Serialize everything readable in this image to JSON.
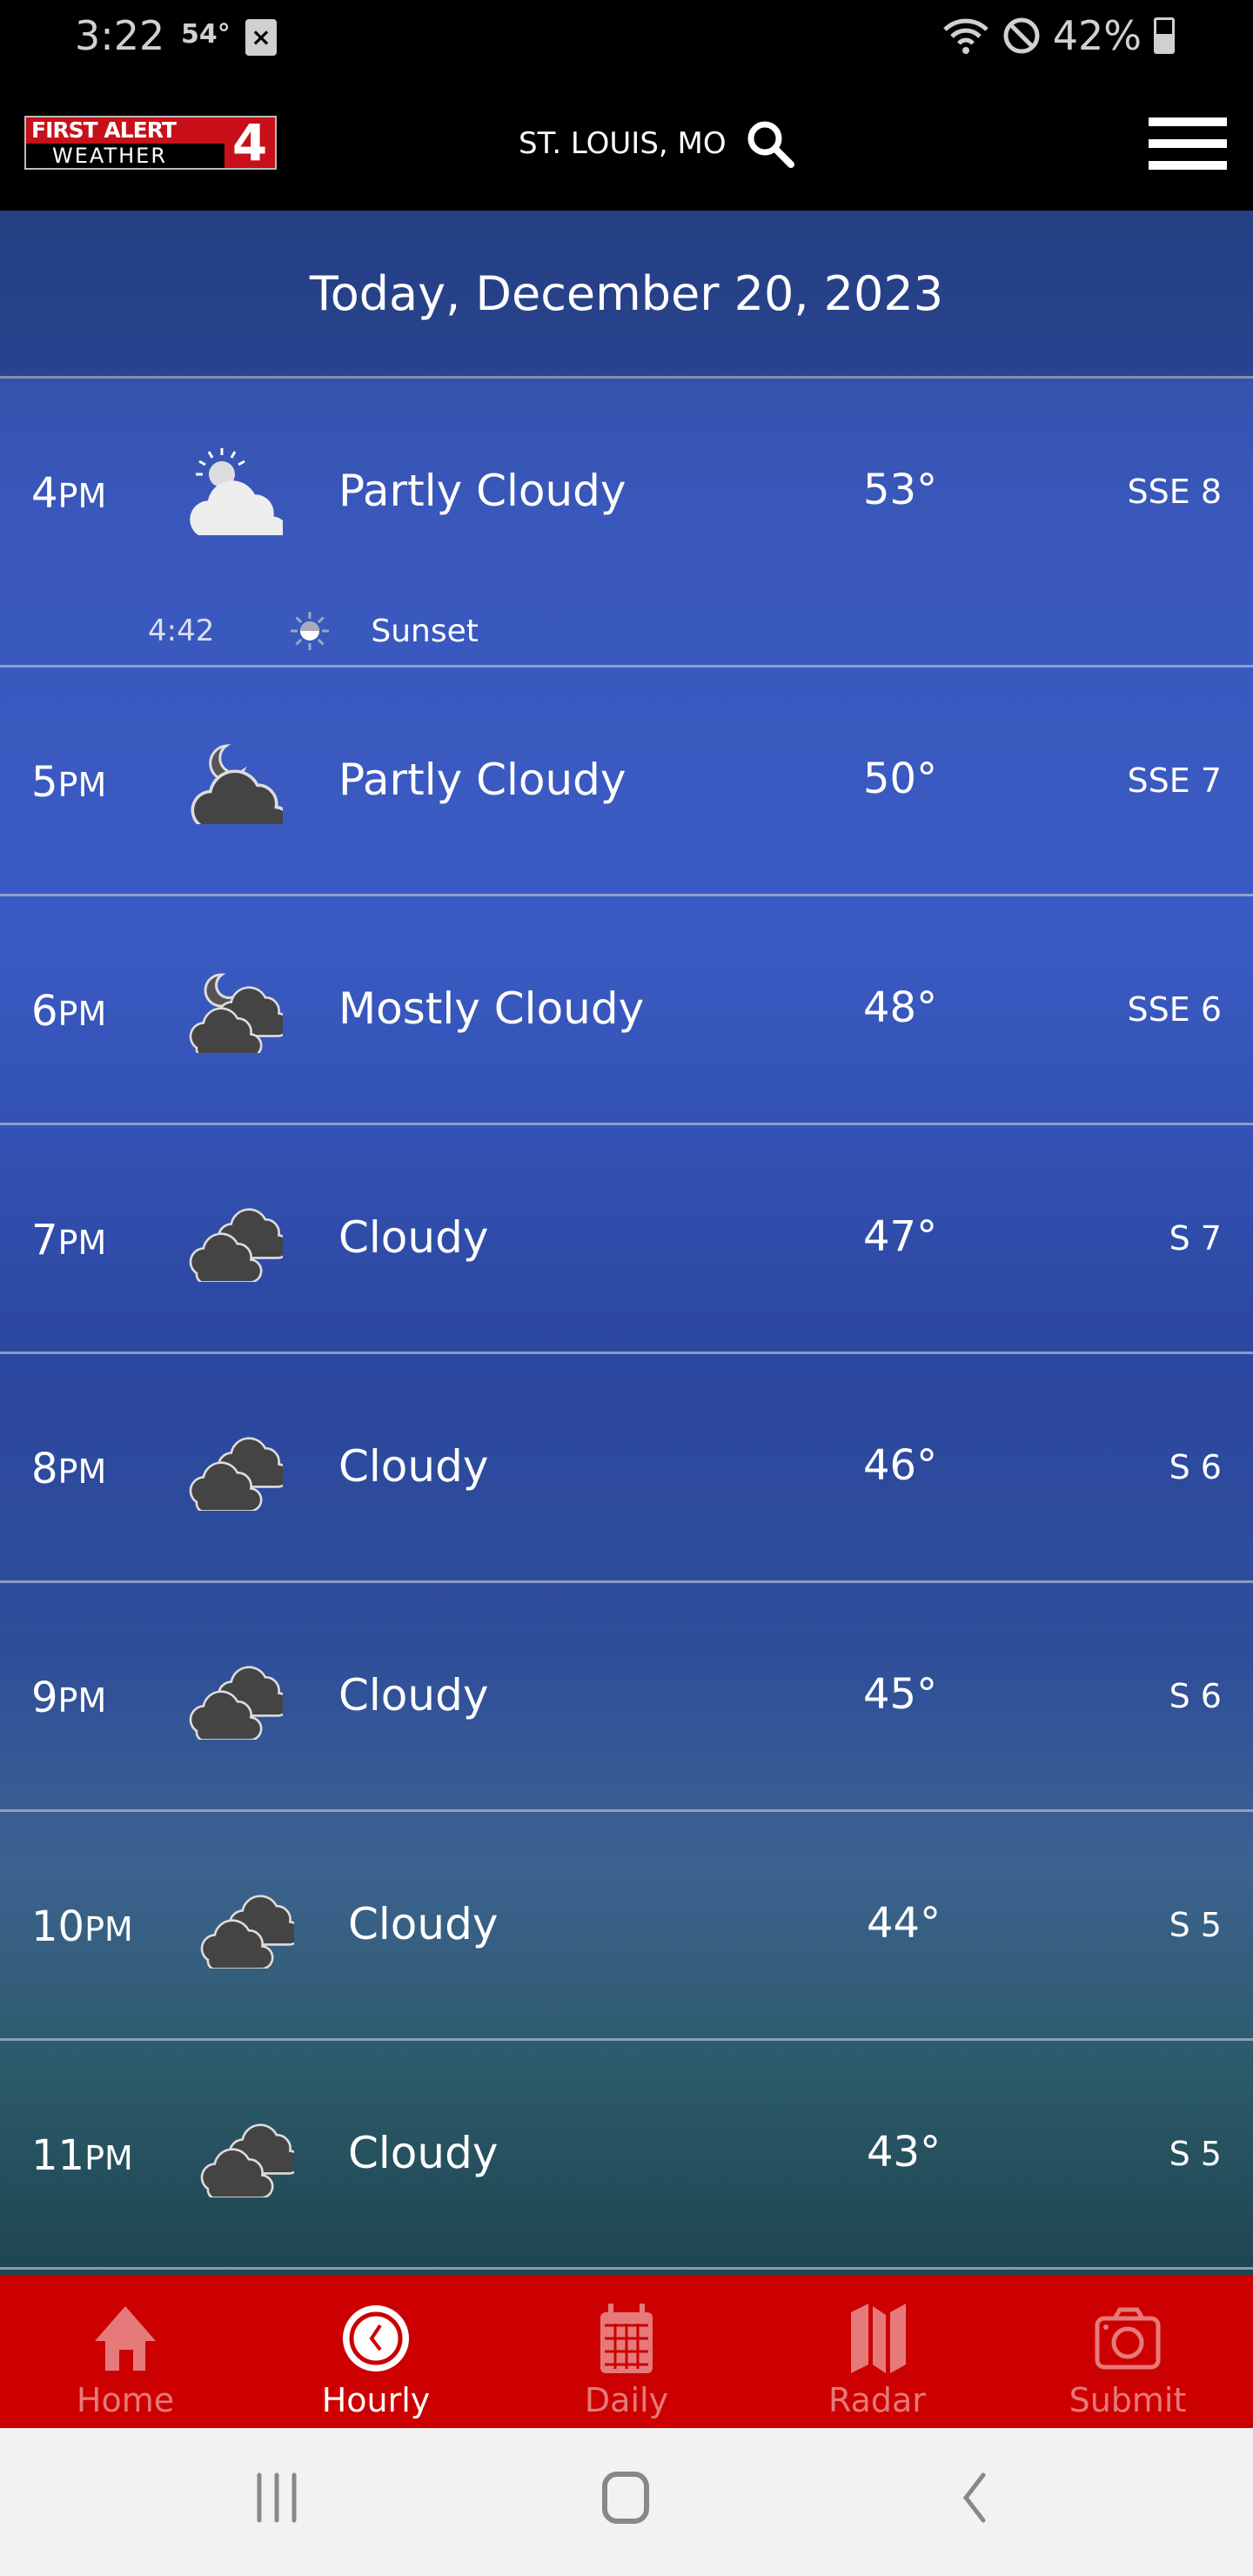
{
  "status": {
    "time": "3:22",
    "temp": "54°",
    "battery": "42%"
  },
  "header": {
    "logo_line1": "FIRST ALERT",
    "logo_line2": "WEATHER",
    "logo_number": "4",
    "location": "ST. LOUIS, MO"
  },
  "date": "Today, December 20, 2023",
  "hours": [
    {
      "hour": "4",
      "ampm": "PM",
      "icon": "partly-cloudy-day",
      "condition": "Partly Cloudy",
      "temp": "53°",
      "wind": "SSE 8"
    },
    {
      "hour": "5",
      "ampm": "PM",
      "icon": "partly-cloudy-night",
      "condition": "Partly Cloudy",
      "temp": "50°",
      "wind": "SSE 7"
    },
    {
      "hour": "6",
      "ampm": "PM",
      "icon": "mostly-cloudy-night",
      "condition": "Mostly Cloudy",
      "temp": "48°",
      "wind": "SSE 6"
    },
    {
      "hour": "7",
      "ampm": "PM",
      "icon": "cloudy",
      "condition": "Cloudy",
      "temp": "47°",
      "wind": "S 7"
    },
    {
      "hour": "8",
      "ampm": "PM",
      "icon": "cloudy",
      "condition": "Cloudy",
      "temp": "46°",
      "wind": "S 6"
    },
    {
      "hour": "9",
      "ampm": "PM",
      "icon": "cloudy",
      "condition": "Cloudy",
      "temp": "45°",
      "wind": "S 6"
    },
    {
      "hour": "10",
      "ampm": "PM",
      "icon": "cloudy",
      "condition": "Cloudy",
      "temp": "44°",
      "wind": "S 5"
    },
    {
      "hour": "11",
      "ampm": "PM",
      "icon": "cloudy",
      "condition": "Cloudy",
      "temp": "43°",
      "wind": "S 5"
    }
  ],
  "sunset": {
    "time": "4:42",
    "label": "Sunset"
  },
  "nav": [
    {
      "label": "Home",
      "icon": "home"
    },
    {
      "label": "Hourly",
      "icon": "clock",
      "active": true
    },
    {
      "label": "Daily",
      "icon": "calendar"
    },
    {
      "label": "Radar",
      "icon": "map"
    },
    {
      "label": "Submit",
      "icon": "camera"
    }
  ],
  "colors": {
    "nav_bg": "#cc0000",
    "header_bg": "#000000",
    "brand_red": "#c8101a"
  }
}
